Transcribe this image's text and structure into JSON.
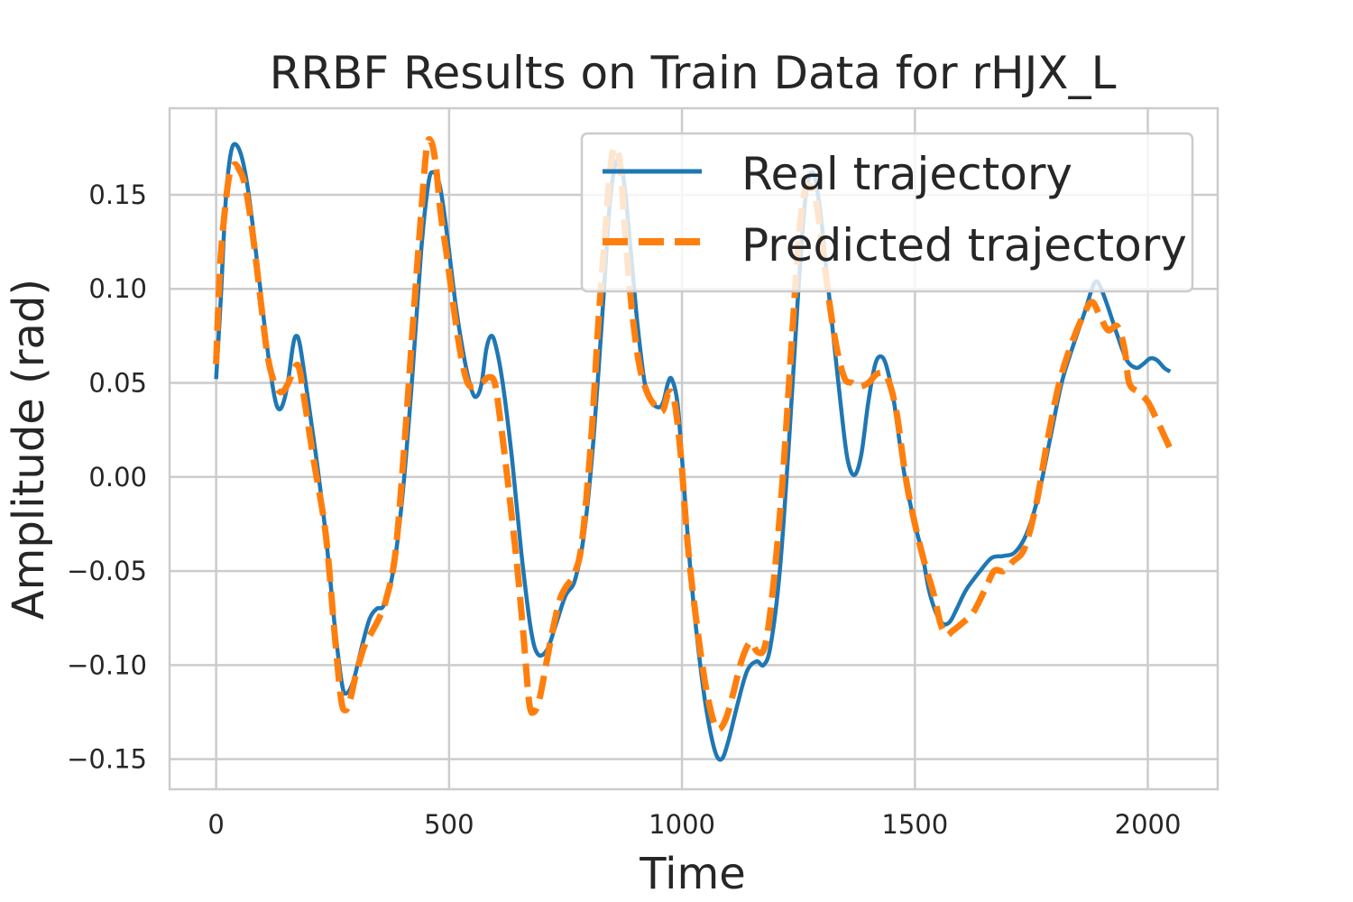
{
  "chart_data": {
    "type": "line",
    "title": "RRBF Results on Train Data for rHJX_L",
    "xlabel": "Time",
    "ylabel": "Amplitude (rad)",
    "xlim": [
      -100,
      2150
    ],
    "ylim": [
      -0.166,
      0.196
    ],
    "xticks": [
      0,
      500,
      1000,
      1500,
      2000
    ],
    "yticks": [
      -0.15,
      -0.1,
      -0.05,
      0.0,
      0.05,
      0.1,
      0.15
    ],
    "xtick_labels": [
      "0",
      "500",
      "1000",
      "1500",
      "2000"
    ],
    "ytick_labels": [
      "−0.15",
      "−0.10",
      "−0.05",
      "0.00",
      "0.05",
      "0.10",
      "0.15"
    ],
    "grid": true,
    "legend_position": "top-right",
    "series": [
      {
        "name": "Real trajectory",
        "color": "#1f77b4",
        "style": "solid",
        "points": [
          [
            0,
            0.052
          ],
          [
            10,
            0.095
          ],
          [
            20,
            0.145
          ],
          [
            30,
            0.17
          ],
          [
            40,
            0.177
          ],
          [
            55,
            0.17
          ],
          [
            70,
            0.15
          ],
          [
            90,
            0.11
          ],
          [
            110,
            0.068
          ],
          [
            125,
            0.043
          ],
          [
            135,
            0.036
          ],
          [
            145,
            0.04
          ],
          [
            155,
            0.052
          ],
          [
            165,
            0.07
          ],
          [
            172,
            0.075
          ],
          [
            180,
            0.07
          ],
          [
            195,
            0.045
          ],
          [
            215,
            0.01
          ],
          [
            235,
            -0.03
          ],
          [
            255,
            -0.08
          ],
          [
            270,
            -0.11
          ],
          [
            280,
            -0.115
          ],
          [
            295,
            -0.108
          ],
          [
            315,
            -0.088
          ],
          [
            330,
            -0.075
          ],
          [
            345,
            -0.07
          ],
          [
            360,
            -0.068
          ],
          [
            380,
            -0.05
          ],
          [
            400,
            -0.01
          ],
          [
            420,
            0.05
          ],
          [
            440,
            0.12
          ],
          [
            455,
            0.155
          ],
          [
            465,
            0.162
          ],
          [
            480,
            0.155
          ],
          [
            495,
            0.13
          ],
          [
            515,
            0.09
          ],
          [
            535,
            0.06
          ],
          [
            550,
            0.045
          ],
          [
            560,
            0.043
          ],
          [
            570,
            0.05
          ],
          [
            580,
            0.068
          ],
          [
            590,
            0.075
          ],
          [
            600,
            0.07
          ],
          [
            615,
            0.05
          ],
          [
            635,
            0.01
          ],
          [
            655,
            -0.04
          ],
          [
            675,
            -0.08
          ],
          [
            690,
            -0.094
          ],
          [
            710,
            -0.092
          ],
          [
            730,
            -0.078
          ],
          [
            750,
            -0.063
          ],
          [
            770,
            -0.055
          ],
          [
            790,
            -0.03
          ],
          [
            810,
            0.02
          ],
          [
            830,
            0.09
          ],
          [
            845,
            0.145
          ],
          [
            860,
            0.168
          ],
          [
            875,
            0.158
          ],
          [
            890,
            0.12
          ],
          [
            905,
            0.08
          ],
          [
            920,
            0.05
          ],
          [
            935,
            0.04
          ],
          [
            950,
            0.037
          ],
          [
            960,
            0.04
          ],
          [
            970,
            0.05
          ],
          [
            978,
            0.052
          ],
          [
            990,
            0.04
          ],
          [
            1000,
            0.01
          ],
          [
            1015,
            -0.04
          ],
          [
            1030,
            -0.08
          ],
          [
            1050,
            -0.12
          ],
          [
            1070,
            -0.145
          ],
          [
            1085,
            -0.15
          ],
          [
            1100,
            -0.14
          ],
          [
            1120,
            -0.12
          ],
          [
            1140,
            -0.103
          ],
          [
            1160,
            -0.098
          ],
          [
            1175,
            -0.1
          ],
          [
            1190,
            -0.09
          ],
          [
            1210,
            -0.05
          ],
          [
            1230,
            0.02
          ],
          [
            1250,
            0.1
          ],
          [
            1265,
            0.148
          ],
          [
            1280,
            0.162
          ],
          [
            1295,
            0.145
          ],
          [
            1310,
            0.11
          ],
          [
            1325,
            0.075
          ],
          [
            1340,
            0.04
          ],
          [
            1355,
            0.01
          ],
          [
            1370,
            0.001
          ],
          [
            1385,
            0.012
          ],
          [
            1400,
            0.04
          ],
          [
            1415,
            0.06
          ],
          [
            1428,
            0.064
          ],
          [
            1440,
            0.058
          ],
          [
            1455,
            0.04
          ],
          [
            1475,
            0.005
          ],
          [
            1495,
            -0.02
          ],
          [
            1515,
            -0.04
          ],
          [
            1530,
            -0.06
          ],
          [
            1545,
            -0.072
          ],
          [
            1560,
            -0.078
          ],
          [
            1575,
            -0.077
          ],
          [
            1590,
            -0.07
          ],
          [
            1610,
            -0.06
          ],
          [
            1640,
            -0.05
          ],
          [
            1665,
            -0.043
          ],
          [
            1690,
            -0.042
          ],
          [
            1715,
            -0.04
          ],
          [
            1740,
            -0.03
          ],
          [
            1765,
            -0.01
          ],
          [
            1790,
            0.02
          ],
          [
            1815,
            0.05
          ],
          [
            1840,
            0.07
          ],
          [
            1865,
            0.088
          ],
          [
            1880,
            0.1
          ],
          [
            1890,
            0.104
          ],
          [
            1900,
            0.1
          ],
          [
            1915,
            0.09
          ],
          [
            1935,
            0.075
          ],
          [
            1955,
            0.062
          ],
          [
            1975,
            0.058
          ],
          [
            1990,
            0.06
          ],
          [
            2005,
            0.063
          ],
          [
            2020,
            0.062
          ],
          [
            2035,
            0.058
          ],
          [
            2048,
            0.056
          ]
        ]
      },
      {
        "name": "Predicted trajectory",
        "color": "#ff7f0e",
        "style": "dashed",
        "points": [
          [
            0,
            0.06
          ],
          [
            8,
            0.11
          ],
          [
            18,
            0.14
          ],
          [
            28,
            0.16
          ],
          [
            38,
            0.166
          ],
          [
            48,
            0.164
          ],
          [
            62,
            0.155
          ],
          [
            78,
            0.13
          ],
          [
            95,
            0.095
          ],
          [
            110,
            0.065
          ],
          [
            125,
            0.05
          ],
          [
            140,
            0.045
          ],
          [
            155,
            0.05
          ],
          [
            168,
            0.058
          ],
          [
            178,
            0.058
          ],
          [
            190,
            0.04
          ],
          [
            210,
            0.008
          ],
          [
            235,
            -0.03
          ],
          [
            255,
            -0.085
          ],
          [
            268,
            -0.118
          ],
          [
            278,
            -0.124
          ],
          [
            288,
            -0.118
          ],
          [
            300,
            -0.105
          ],
          [
            318,
            -0.09
          ],
          [
            335,
            -0.082
          ],
          [
            350,
            -0.075
          ],
          [
            365,
            -0.065
          ],
          [
            385,
            -0.04
          ],
          [
            405,
            0.02
          ],
          [
            425,
            0.09
          ],
          [
            440,
            0.14
          ],
          [
            452,
            0.175
          ],
          [
            462,
            0.178
          ],
          [
            472,
            0.165
          ],
          [
            482,
            0.14
          ],
          [
            495,
            0.118
          ],
          [
            510,
            0.09
          ],
          [
            525,
            0.065
          ],
          [
            540,
            0.05
          ],
          [
            555,
            0.048
          ],
          [
            570,
            0.05
          ],
          [
            585,
            0.053
          ],
          [
            598,
            0.05
          ],
          [
            610,
            0.03
          ],
          [
            625,
            0.0
          ],
          [
            645,
            -0.045
          ],
          [
            660,
            -0.085
          ],
          [
            672,
            -0.12
          ],
          [
            682,
            -0.125
          ],
          [
            694,
            -0.118
          ],
          [
            708,
            -0.1
          ],
          [
            722,
            -0.082
          ],
          [
            738,
            -0.065
          ],
          [
            752,
            -0.058
          ],
          [
            768,
            -0.052
          ],
          [
            785,
            -0.035
          ],
          [
            805,
            0.02
          ],
          [
            820,
            0.08
          ],
          [
            835,
            0.13
          ],
          [
            848,
            0.168
          ],
          [
            858,
            0.175
          ],
          [
            868,
            0.165
          ],
          [
            878,
            0.13
          ],
          [
            892,
            0.09
          ],
          [
            908,
            0.06
          ],
          [
            925,
            0.045
          ],
          [
            942,
            0.038
          ],
          [
            958,
            0.035
          ],
          [
            972,
            0.045
          ],
          [
            984,
            0.04
          ],
          [
            998,
            0.01
          ],
          [
            1012,
            -0.035
          ],
          [
            1030,
            -0.075
          ],
          [
            1050,
            -0.11
          ],
          [
            1068,
            -0.13
          ],
          [
            1080,
            -0.134
          ],
          [
            1095,
            -0.128
          ],
          [
            1110,
            -0.115
          ],
          [
            1125,
            -0.1
          ],
          [
            1140,
            -0.09
          ],
          [
            1150,
            -0.088
          ],
          [
            1162,
            -0.093
          ],
          [
            1178,
            -0.09
          ],
          [
            1195,
            -0.06
          ],
          [
            1215,
            -0.005
          ],
          [
            1235,
            0.07
          ],
          [
            1250,
            0.125
          ],
          [
            1262,
            0.15
          ],
          [
            1272,
            0.155
          ],
          [
            1285,
            0.15
          ],
          [
            1300,
            0.125
          ],
          [
            1318,
            0.09
          ],
          [
            1335,
            0.065
          ],
          [
            1350,
            0.052
          ],
          [
            1365,
            0.05
          ],
          [
            1380,
            0.048
          ],
          [
            1400,
            0.05
          ],
          [
            1420,
            0.055
          ],
          [
            1440,
            0.053
          ],
          [
            1460,
            0.035
          ],
          [
            1480,
            0.0
          ],
          [
            1500,
            -0.025
          ],
          [
            1520,
            -0.045
          ],
          [
            1540,
            -0.062
          ],
          [
            1555,
            -0.078
          ],
          [
            1568,
            -0.084
          ],
          [
            1580,
            -0.082
          ],
          [
            1600,
            -0.078
          ],
          [
            1625,
            -0.072
          ],
          [
            1650,
            -0.06
          ],
          [
            1670,
            -0.05
          ],
          [
            1690,
            -0.05
          ],
          [
            1710,
            -0.045
          ],
          [
            1735,
            -0.038
          ],
          [
            1760,
            -0.015
          ],
          [
            1785,
            0.02
          ],
          [
            1810,
            0.05
          ],
          [
            1835,
            0.07
          ],
          [
            1860,
            0.085
          ],
          [
            1880,
            0.093
          ],
          [
            1898,
            0.085
          ],
          [
            1915,
            0.078
          ],
          [
            1935,
            0.08
          ],
          [
            1950,
            0.068
          ],
          [
            1960,
            0.05
          ],
          [
            1980,
            0.045
          ],
          [
            2000,
            0.04
          ],
          [
            2020,
            0.03
          ],
          [
            2035,
            0.022
          ],
          [
            2048,
            0.015
          ]
        ]
      }
    ]
  }
}
